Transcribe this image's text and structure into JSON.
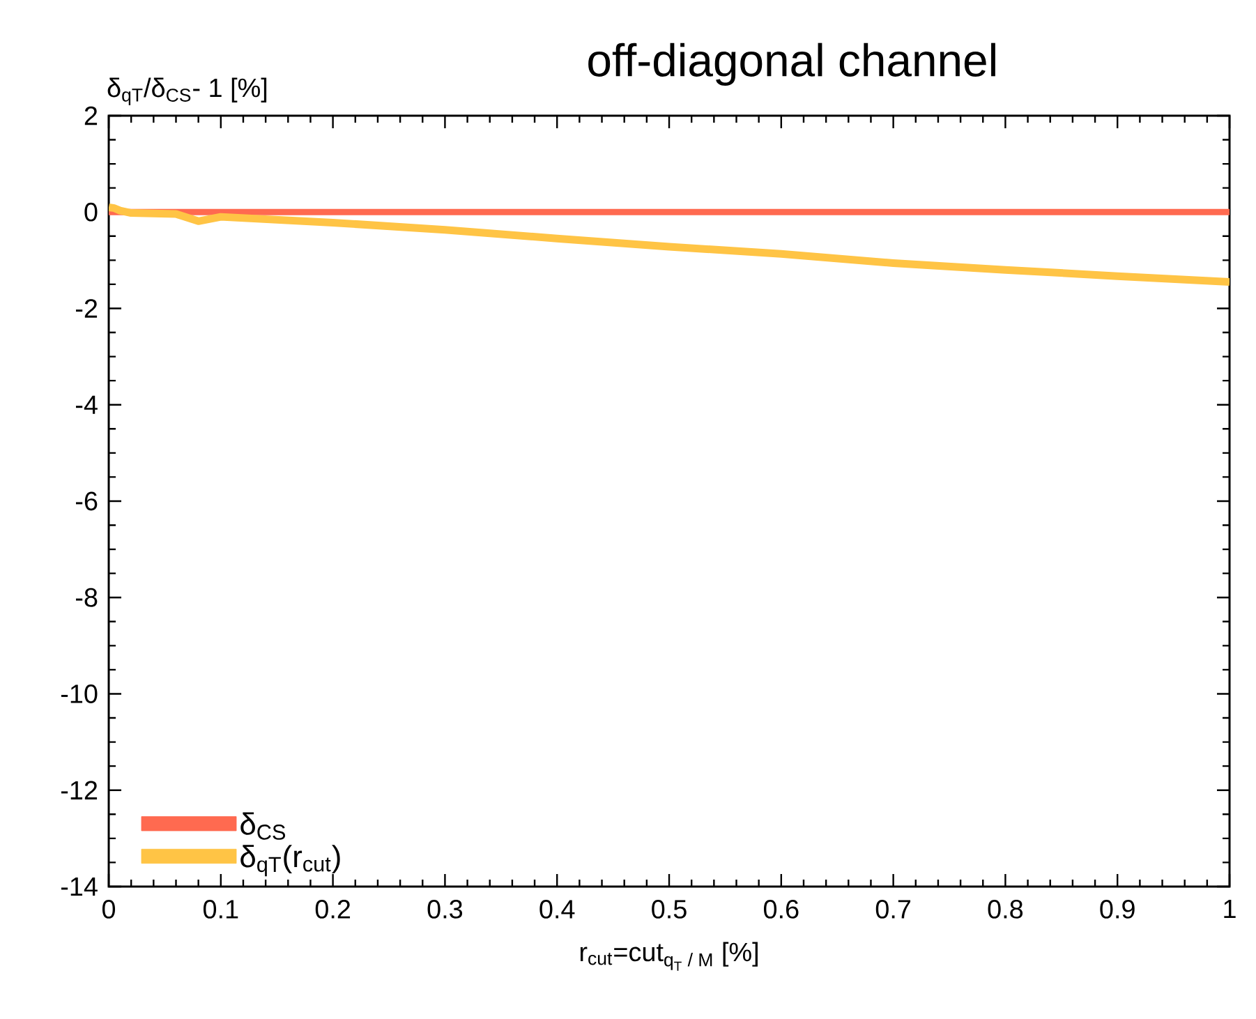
{
  "chart_data": {
    "type": "line",
    "title": "off-diagonal channel",
    "ylabel": "δ$_{qT}$/δ$_{CS}$- 1 [%]",
    "xlabel": "\\text{r}_{\\text{cut}}\\text{=cut}_{\\text{q}_{\\text{T}}\\text{ / M}}\\text{ [\\%]}",
    "xlim": [
      0,
      1
    ],
    "ylim": [
      -14,
      2
    ],
    "xticks": [
      0,
      0.1,
      0.2,
      0.3,
      0.4,
      0.5,
      0.6,
      0.7,
      0.8,
      0.9,
      1
    ],
    "yticks": [
      -14,
      -12,
      -10,
      -8,
      -6,
      -4,
      -2,
      0,
      2
    ],
    "grid": false,
    "legend": "bottom left",
    "series": [
      {
        "name": "δ$_{CS}$",
        "color": "#ff6a50",
        "x": [
          0,
          0.1,
          0.2,
          0.3,
          0.4,
          0.5,
          0.6,
          0.7,
          0.8,
          0.9,
          1
        ],
        "values": [
          0,
          0,
          0,
          0,
          0,
          0,
          0,
          0,
          0,
          0,
          0
        ]
      },
      {
        "name": "δ$_{qT}$(r$_{cut}$)",
        "color": "#ffc445",
        "x": [
          0,
          0.005,
          0.01,
          0.02,
          0.04,
          0.06,
          0.08,
          0.1,
          0.2,
          0.3,
          0.4,
          0.5,
          0.6,
          0.7,
          0.8,
          0.9,
          1
        ],
        "values": [
          0.1,
          0.08,
          0.03,
          -0.02,
          -0.03,
          -0.04,
          -0.19,
          -0.1,
          -0.22,
          -0.37,
          -0.55,
          -0.72,
          -0.87,
          -1.06,
          -1.2,
          -1.33,
          -1.45
        ]
      }
    ]
  }
}
